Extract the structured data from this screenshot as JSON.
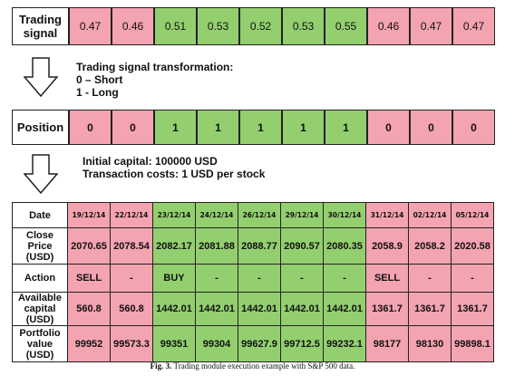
{
  "signal": {
    "label_line1": "Trading",
    "label_line2": "signal",
    "values": [
      "0.47",
      "0.46",
      "0.51",
      "0.53",
      "0.52",
      "0.53",
      "0.55",
      "0.46",
      "0.47",
      "0.47"
    ],
    "colors": [
      "pink",
      "pink",
      "green",
      "green",
      "green",
      "green",
      "green",
      "pink",
      "pink",
      "pink"
    ]
  },
  "transform_note": {
    "line1": "Trading signal transformation:",
    "line2": "0 – Short",
    "line3": "1 - Long"
  },
  "position": {
    "label": "Position",
    "values": [
      "0",
      "0",
      "1",
      "1",
      "1",
      "1",
      "1",
      "0",
      "0",
      "0"
    ]
  },
  "capital_note": {
    "line1": "Initial capital: 100000 USD",
    "line2": "Transaction costs: 1 USD per stock"
  },
  "table": {
    "row_labels": {
      "date": "Date",
      "close_l1": "Close",
      "close_l2": "Price",
      "close_l3": "(USD)",
      "action": "Action",
      "cap_l1": "Available",
      "cap_l2": "capital",
      "cap_l3": "(USD)",
      "port_l1": "Portfolio",
      "port_l2": "value",
      "port_l3": "(USD)"
    },
    "dates": [
      "19/12/14",
      "22/12/14",
      "23/12/14",
      "24/12/14",
      "26/12/14",
      "29/12/14",
      "30/12/14",
      "31/12/14",
      "02/12/14",
      "05/12/14"
    ],
    "close": [
      "2070.65",
      "2078.54",
      "2082.17",
      "2081.88",
      "2088.77",
      "2090.57",
      "2080.35",
      "2058.9",
      "2058.2",
      "2020.58"
    ],
    "action": [
      "SELL",
      "-",
      "BUY",
      "-",
      "-",
      "-",
      "-",
      "SELL",
      "-",
      "-"
    ],
    "capital": [
      "560.8",
      "560.8",
      "1442.01",
      "1442.01",
      "1442.01",
      "1442.01",
      "1442.01",
      "1361.7",
      "1361.7",
      "1361.7"
    ],
    "portfolio": [
      "99952",
      "99573.3",
      "99351",
      "99304",
      "99627.9",
      "99712.5",
      "99232.1",
      "98177",
      "98130",
      "99898.1"
    ]
  },
  "colors": {
    "pink": "#f4a3b1",
    "green": "#93cf6f"
  },
  "caption": {
    "fig": "Fig. 3.",
    "text": "Trading module execution example with S&P 500 data."
  }
}
